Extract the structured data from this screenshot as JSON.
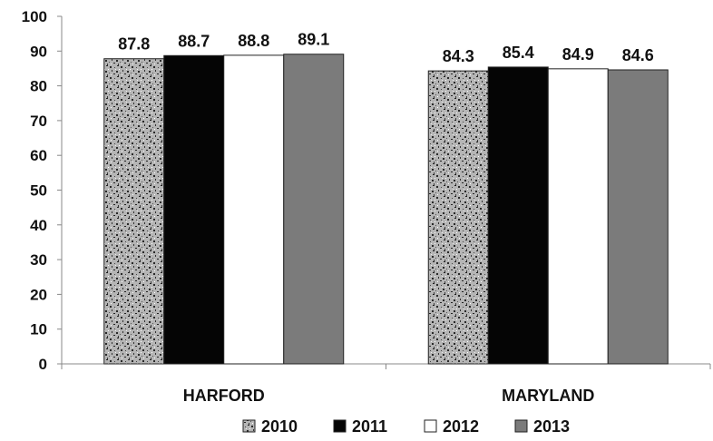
{
  "chart_data": {
    "type": "bar",
    "title": "",
    "xlabel": "",
    "ylabel": "",
    "categories": [
      "HARFORD",
      "MARYLAND"
    ],
    "series": [
      {
        "name": "2010",
        "values": [
          87.8,
          84.3
        ],
        "fill": "speckle",
        "color": "#9a9a9a"
      },
      {
        "name": "2011",
        "values": [
          88.7,
          85.4
        ],
        "fill": "solid",
        "color": "#050505"
      },
      {
        "name": "2012",
        "values": [
          88.8,
          84.9
        ],
        "fill": "solid",
        "color": "#ffffff"
      },
      {
        "name": "2013",
        "values": [
          89.1,
          84.6
        ],
        "fill": "solid",
        "color": "#7b7b7b"
      }
    ],
    "yticks": [
      "0",
      "10",
      "20",
      "30",
      "40",
      "50",
      "60",
      "70",
      "80",
      "90",
      "100"
    ],
    "ylim": [
      0,
      100
    ],
    "grid": false,
    "legend": "bottom"
  }
}
